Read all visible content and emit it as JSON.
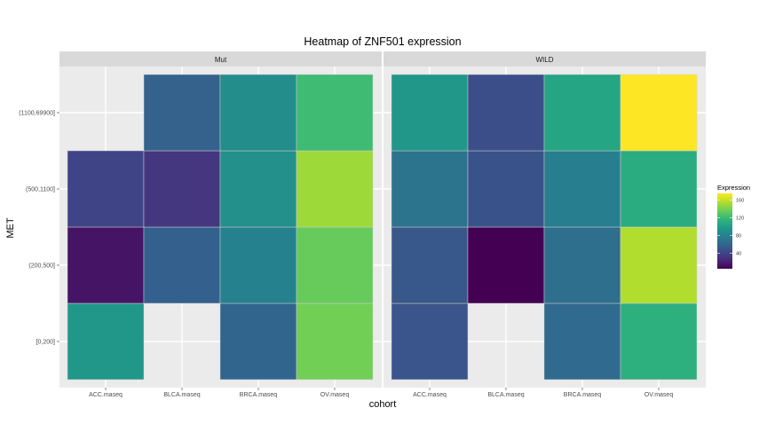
{
  "chart_data": {
    "type": "heatmap",
    "title": "Heatmap of ZNF501 expression",
    "xlabel": "cohort",
    "ylabel": "MET",
    "x_categories": [
      "ACC.maseq",
      "BLCA.maseq",
      "BRCA.maseq",
      "OV.maseq"
    ],
    "y_categories": [
      "[0,200]",
      "(200,500]",
      "(500,1100]",
      "(1100,69900]"
    ],
    "facets": [
      {
        "name": "Mut",
        "cells": [
          {
            "x": "ACC.maseq",
            "y": "[0,200]",
            "value": 95
          },
          {
            "x": "ACC.maseq",
            "y": "(200,500]",
            "value": 14
          },
          {
            "x": "ACC.maseq",
            "y": "(500,1100]",
            "value": 40
          },
          {
            "x": "BLCA.maseq",
            "y": "(200,500]",
            "value": 57
          },
          {
            "x": "BLCA.maseq",
            "y": "(500,1100]",
            "value": 32
          },
          {
            "x": "BLCA.maseq",
            "y": "(1100,69900]",
            "value": 58
          },
          {
            "x": "BRCA.maseq",
            "y": "[0,200]",
            "value": 60
          },
          {
            "x": "BRCA.maseq",
            "y": "(200,500]",
            "value": 80
          },
          {
            "x": "BRCA.maseq",
            "y": "(500,1100]",
            "value": 90
          },
          {
            "x": "BRCA.maseq",
            "y": "(1100,69900]",
            "value": 88
          },
          {
            "x": "OV.maseq",
            "y": "[0,200]",
            "value": 138
          },
          {
            "x": "OV.maseq",
            "y": "(200,500]",
            "value": 135
          },
          {
            "x": "OV.maseq",
            "y": "(500,1100]",
            "value": 150
          },
          {
            "x": "OV.maseq",
            "y": "(1100,69900]",
            "value": 122
          }
        ]
      },
      {
        "name": "WILD",
        "cells": [
          {
            "x": "ACC.maseq",
            "y": "[0,200]",
            "value": 50
          },
          {
            "x": "ACC.maseq",
            "y": "(200,500]",
            "value": 52
          },
          {
            "x": "ACC.maseq",
            "y": "(500,1100]",
            "value": 70
          },
          {
            "x": "ACC.maseq",
            "y": "(1100,69900]",
            "value": 95
          },
          {
            "x": "BLCA.maseq",
            "y": "(200,500]",
            "value": 5
          },
          {
            "x": "BLCA.maseq",
            "y": "(500,1100]",
            "value": 48
          },
          {
            "x": "BLCA.maseq",
            "y": "(1100,69900]",
            "value": 46
          },
          {
            "x": "BRCA.maseq",
            "y": "[0,200]",
            "value": 63
          },
          {
            "x": "BRCA.maseq",
            "y": "(200,500]",
            "value": 67
          },
          {
            "x": "BRCA.maseq",
            "y": "(500,1100]",
            "value": 78
          },
          {
            "x": "BRCA.maseq",
            "y": "(1100,69900]",
            "value": 105
          },
          {
            "x": "OV.maseq",
            "y": "[0,200]",
            "value": 112
          },
          {
            "x": "OV.maseq",
            "y": "(200,500]",
            "value": 155
          },
          {
            "x": "OV.maseq",
            "y": "(500,1100]",
            "value": 110
          },
          {
            "x": "OV.maseq",
            "y": "(1100,69900]",
            "value": 175
          }
        ]
      }
    ],
    "legend": {
      "title": "Expression",
      "min": 5,
      "max": 175,
      "ticks": [
        40,
        80,
        120,
        160
      ],
      "placement": "right"
    },
    "colorscale": "viridis",
    "grid": true,
    "panel_background": "#ebebeb",
    "strip_background": "#d9d9d9"
  }
}
